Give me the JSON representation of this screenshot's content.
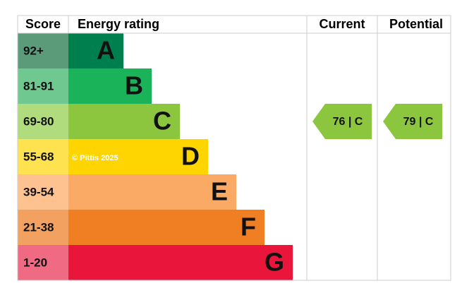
{
  "header": {
    "score": "Score",
    "rating": "Energy rating",
    "current": "Current",
    "potential": "Potential"
  },
  "rows": [
    {
      "score": "92+",
      "band": "A",
      "bar_color": "#007f4e",
      "score_color": "#5c9b7a"
    },
    {
      "score": "81-91",
      "band": "B",
      "bar_color": "#1bb35a",
      "score_color": "#6ec88f"
    },
    {
      "score": "69-80",
      "band": "C",
      "bar_color": "#8cc63f",
      "score_color": "#b1dc7e"
    },
    {
      "score": "55-68",
      "band": "D",
      "bar_color": "#ffd500",
      "score_color": "#ffe24f"
    },
    {
      "score": "39-54",
      "band": "E",
      "bar_color": "#fbaa65",
      "score_color": "#fdc290"
    },
    {
      "score": "21-38",
      "band": "F",
      "bar_color": "#ef7f22",
      "score_color": "#f3a160"
    },
    {
      "score": "1-20",
      "band": "G",
      "bar_color": "#e9153b",
      "score_color": "#f06a84"
    }
  ],
  "current": "76 | C",
  "potential": "79 | C",
  "watermark": "© Pittis 2025"
}
